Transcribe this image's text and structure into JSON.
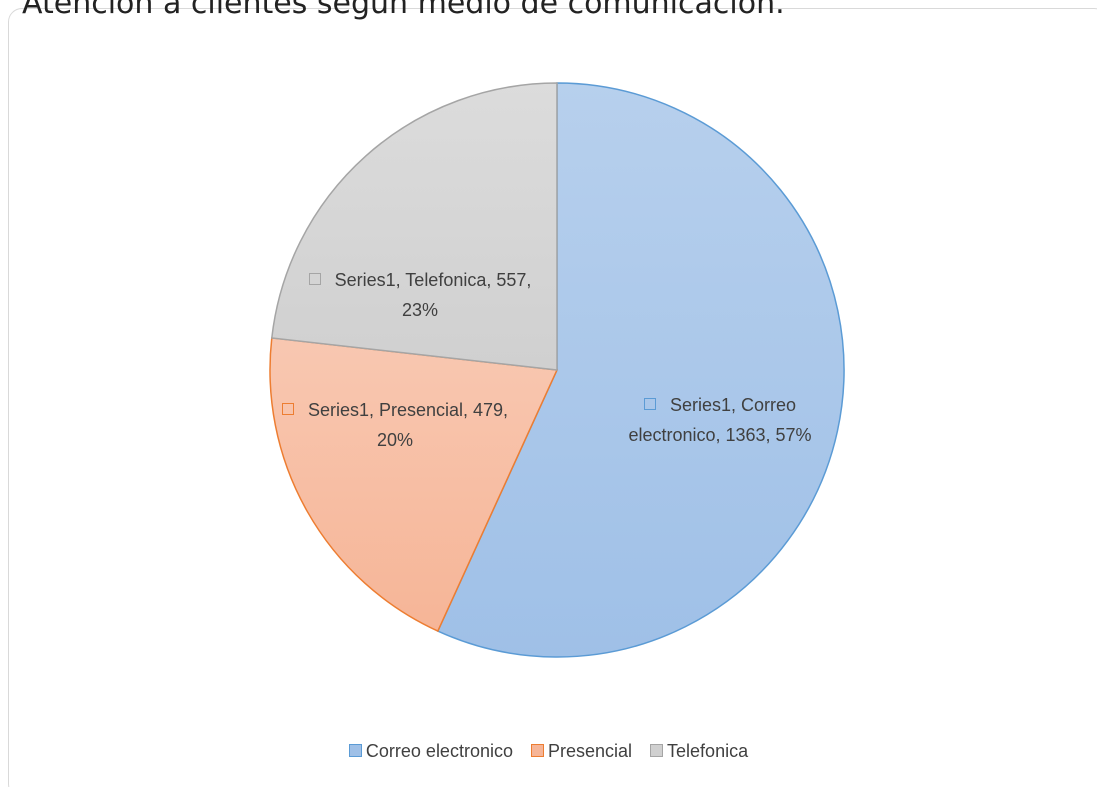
{
  "chart_data": {
    "type": "pie",
    "title": "Atencion a clientes segun medio de comunicacion.",
    "categories": [
      "Correo electronico",
      "Presencial",
      "Telefonica"
    ],
    "series": [
      {
        "name": "Series1",
        "values": [
          1363,
          479,
          557
        ]
      }
    ],
    "value_labels": [
      "Series1, Correo electronico, 1363, 57%",
      "Series1, Presencial, 479, 20%",
      "Series1, Telefonica, 557, 23%"
    ],
    "colors": [
      "#9fc0e7",
      "#f6b597",
      "#d0d0d0"
    ],
    "edge_colors": [
      "#5b9bd5",
      "#ed7d31",
      "#a5a5a5"
    ],
    "legend": "bottom"
  }
}
